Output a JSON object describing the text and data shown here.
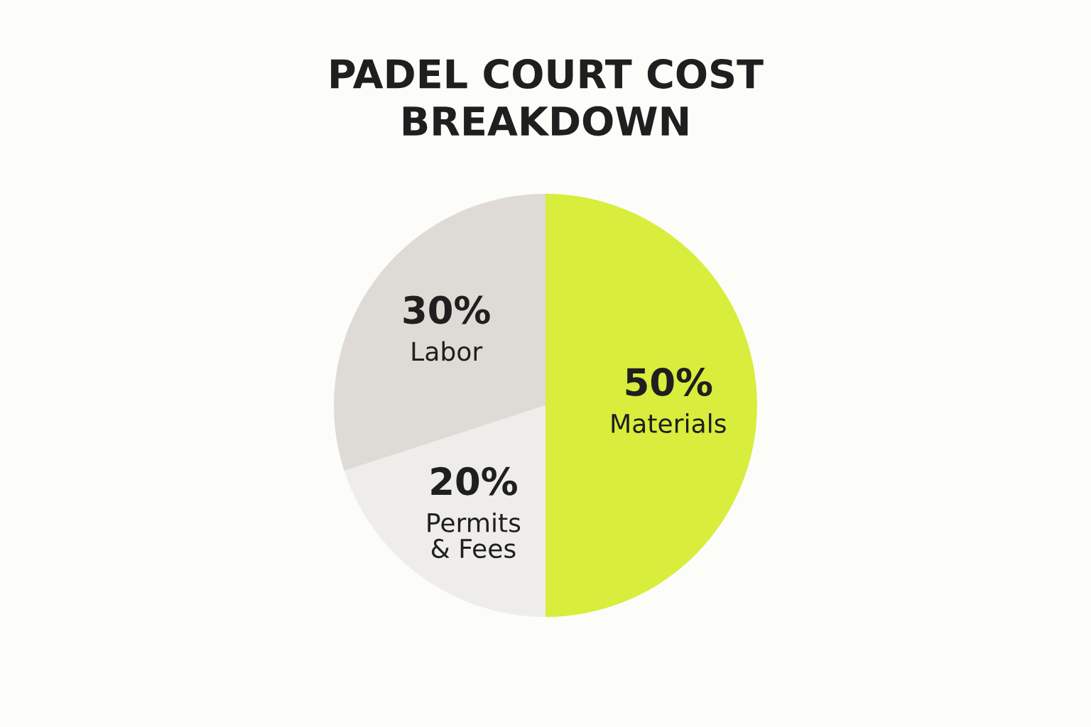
{
  "chart_data": {
    "type": "pie",
    "title": "PADEL COURT COST\nBREAKDOWN",
    "categories": [
      "Materials",
      "Permits\n& Fees",
      "Labor"
    ],
    "values": [
      50,
      20,
      30
    ],
    "colors": [
      "#d8ed3c",
      "#efedea",
      "#dedbd7"
    ],
    "value_labels": [
      "50%",
      "20%",
      "30%"
    ]
  }
}
